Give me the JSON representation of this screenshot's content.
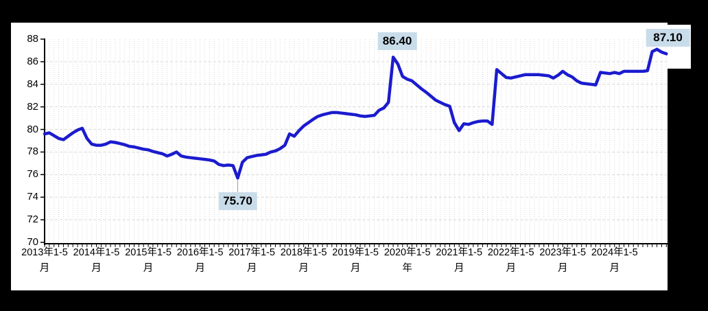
{
  "chart_data": {
    "type": "line",
    "title": "",
    "ylim": [
      70,
      88
    ],
    "ytick_step": 2,
    "y_tick_labels": [
      "88",
      "86",
      "84",
      "82",
      "80",
      "78",
      "76",
      "74",
      "72",
      "70"
    ],
    "x_start_period": "2013年1-5月",
    "points_per_year": 11,
    "legend": null,
    "grid": {
      "horizontal": "dashed",
      "vertical": "dotted"
    },
    "x_tick_labels": [
      {
        "index": 0,
        "line1": "2013年1-5",
        "line2": "月"
      },
      {
        "index": 11,
        "line1": "2014年1-5",
        "line2": "月"
      },
      {
        "index": 22,
        "line1": "2015年1-5",
        "line2": "月"
      },
      {
        "index": 33,
        "line1": "2016年1-5",
        "line2": "月"
      },
      {
        "index": 44,
        "line1": "2017年1-5",
        "line2": "月"
      },
      {
        "index": 55,
        "line1": "2018年1-5",
        "line2": "月"
      },
      {
        "index": 66,
        "line1": "2019年1-5",
        "line2": "月"
      },
      {
        "index": 77,
        "line1": "2020年1-5",
        "line2": "年"
      },
      {
        "index": 88,
        "line1": "2021年1-5",
        "line2": "月"
      },
      {
        "index": 99,
        "line1": "2022年1-5",
        "line2": "月"
      },
      {
        "index": 110,
        "line1": "2023年1-5",
        "line2": "月"
      },
      {
        "index": 121,
        "line1": "2024年1-5",
        "line2": "月"
      }
    ],
    "values": [
      79.6,
      79.7,
      79.45,
      79.2,
      79.1,
      79.4,
      79.7,
      79.95,
      80.1,
      79.2,
      78.7,
      78.6,
      78.6,
      78.7,
      78.9,
      78.85,
      78.75,
      78.65,
      78.5,
      78.45,
      78.35,
      78.25,
      78.2,
      78.05,
      77.95,
      77.85,
      77.65,
      77.8,
      78.0,
      77.65,
      77.55,
      77.5,
      77.45,
      77.4,
      77.35,
      77.3,
      77.2,
      76.9,
      76.8,
      76.85,
      76.8,
      75.7,
      77.1,
      77.5,
      77.6,
      77.7,
      77.75,
      77.8,
      78.0,
      78.1,
      78.3,
      78.6,
      79.6,
      79.4,
      79.9,
      80.3,
      80.6,
      80.9,
      81.15,
      81.3,
      81.4,
      81.5,
      81.5,
      81.45,
      81.4,
      81.35,
      81.3,
      81.2,
      81.15,
      81.2,
      81.25,
      81.7,
      81.9,
      82.4,
      86.4,
      85.8,
      84.7,
      84.45,
      84.3,
      83.95,
      83.6,
      83.3,
      82.95,
      82.6,
      82.4,
      82.2,
      82.05,
      80.6,
      79.9,
      80.5,
      80.45,
      80.6,
      80.7,
      80.75,
      80.75,
      80.45,
      85.3,
      84.95,
      84.6,
      84.55,
      84.65,
      84.75,
      84.85,
      84.85,
      84.85,
      84.85,
      84.8,
      84.75,
      84.55,
      84.8,
      85.15,
      84.85,
      84.65,
      84.3,
      84.1,
      84.05,
      84.0,
      83.95,
      85.05,
      85.0,
      84.95,
      85.05,
      84.95,
      85.15,
      85.15,
      85.15,
      85.15,
      85.15,
      85.2,
      86.9,
      87.1,
      86.85,
      86.7
    ],
    "annotations": [
      {
        "label": "86.40",
        "index": 74,
        "value": 86.4,
        "placement": "above"
      },
      {
        "label": "75.70",
        "index": 41,
        "value": 75.7,
        "placement": "below"
      },
      {
        "label": "87.10",
        "index": 130,
        "value": 87.1,
        "placement": "above"
      }
    ],
    "colors": {
      "line": "#1b1bce",
      "annotation_bg": "#c9dcea",
      "grid": "#d9d9d9",
      "axis": "#000000",
      "leader": "#999999",
      "background": "#000000",
      "panel": "#ffffff"
    }
  }
}
